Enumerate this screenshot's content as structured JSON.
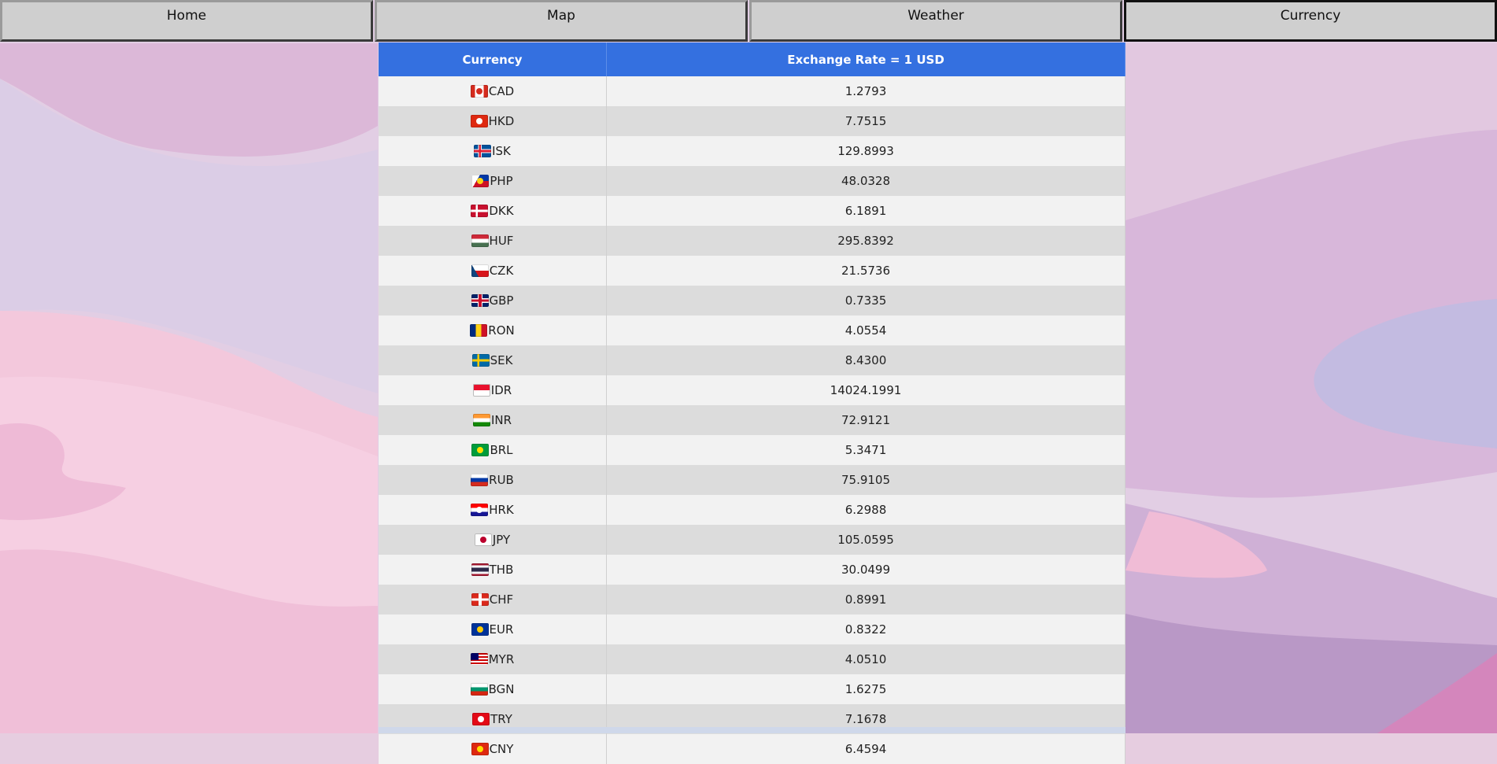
{
  "nav": {
    "items": [
      {
        "label": "Home",
        "name": "nav-home-button"
      },
      {
        "label": "Map",
        "name": "nav-map-button"
      },
      {
        "label": "Weather",
        "name": "nav-weather-button"
      },
      {
        "label": "Currency",
        "name": "nav-currency-button"
      }
    ]
  },
  "table": {
    "headers": [
      "Currency",
      "Exchange Rate = 1 USD"
    ],
    "rows": [
      {
        "code": "CAD",
        "rate": "1.2793",
        "flag": "linear-gradient(90deg,#d52b1e 0 25%,#ffffff 25% 75%,#d52b1e 75%)",
        "dot": "#d52b1e"
      },
      {
        "code": "HKD",
        "rate": "7.7515",
        "flag": "#de2910",
        "dot": "#ffffff"
      },
      {
        "code": "ISK",
        "rate": "129.8993",
        "flag": "linear-gradient(90deg,transparent 30%,#dc1e35 30% 40%,transparent 40%),linear-gradient(180deg,transparent 42%,#dc1e35 42% 58%,transparent 58%),linear-gradient(90deg,transparent 25%,#ffffff 25% 45%,transparent 45%),linear-gradient(180deg,transparent 35%,#ffffff 35% 65%,transparent 65%),#02529c",
        "dot": ""
      },
      {
        "code": "PHP",
        "rate": "48.0328",
        "flag": "linear-gradient(120deg,#ffffff 0 35%,transparent 35%),linear-gradient(180deg,#0038a8 50%,#ce1126 50%)",
        "dot": "#fcd116"
      },
      {
        "code": "DKK",
        "rate": "6.1891",
        "flag": "linear-gradient(90deg,transparent 30%,#ffffff 30% 42%,transparent 42%),linear-gradient(180deg,transparent 42%,#ffffff 42% 58%,transparent 58%),#c8102e",
        "dot": ""
      },
      {
        "code": "HUF",
        "rate": "295.8392",
        "flag": "linear-gradient(180deg,#ce2939 0 33%,#ffffff 33% 66%,#477050 66%)",
        "dot": ""
      },
      {
        "code": "CZK",
        "rate": "21.5736",
        "flag": "linear-gradient(60deg,#11457e 0 30%,transparent 30%),linear-gradient(180deg,#ffffff 50%,#d7141a 50%)",
        "dot": ""
      },
      {
        "code": "GBP",
        "rate": "0.7335",
        "flag": "linear-gradient(90deg,transparent 42%,#c8102e 42% 58%,transparent 58%),linear-gradient(180deg,transparent 40%,#c8102e 40% 60%,transparent 60%),linear-gradient(90deg,transparent 36%,#ffffff 36% 64%,transparent 64%),linear-gradient(180deg,transparent 32%,#ffffff 32% 68%,transparent 68%),#012169",
        "dot": ""
      },
      {
        "code": "RON",
        "rate": "4.0554",
        "flag": "linear-gradient(90deg,#002b7f 0 33%,#fcd116 33% 66%,#ce1126 66%)",
        "dot": ""
      },
      {
        "code": "SEK",
        "rate": "8.4300",
        "flag": "linear-gradient(90deg,transparent 30%,#fecc00 30% 42%,transparent 42%),linear-gradient(180deg,transparent 42%,#fecc00 42% 58%,transparent 58%),#006aa7",
        "dot": ""
      },
      {
        "code": "IDR",
        "rate": "14024.1991",
        "flag": "linear-gradient(180deg,#e8112d 50%,#ffffff 50%)",
        "dot": ""
      },
      {
        "code": "INR",
        "rate": "72.9121",
        "flag": "linear-gradient(180deg,#ff9933 0 33%,#ffffff 33% 66%,#138808 66%)",
        "dot": ""
      },
      {
        "code": "BRL",
        "rate": "5.3471",
        "flag": "#009c3b",
        "dot": "#ffdf00"
      },
      {
        "code": "RUB",
        "rate": "75.9105",
        "flag": "linear-gradient(180deg,#ffffff 0 33%,#0039a6 33% 66%,#d52b1e 66%)",
        "dot": ""
      },
      {
        "code": "HRK",
        "rate": "6.2988",
        "flag": "linear-gradient(180deg,#ff0000 0 33%,#ffffff 33% 66%,#171796 66%)",
        "dot": "#ffffff"
      },
      {
        "code": "JPY",
        "rate": "105.0595",
        "flag": "#ffffff",
        "dot": "#bc002d"
      },
      {
        "code": "THB",
        "rate": "30.0499",
        "flag": "linear-gradient(180deg,#a51931 0 16%,#f4f5f8 16% 33%,#2d2a4a 33% 66%,#f4f5f8 66% 83%,#a51931 83%)",
        "dot": ""
      },
      {
        "code": "CHF",
        "rate": "0.8991",
        "flag": "linear-gradient(90deg,transparent 42%,#ffffff 42% 58%,transparent 58%),linear-gradient(180deg,transparent 40%,#ffffff 40% 60%,transparent 60%),#da291c",
        "dot": ""
      },
      {
        "code": "EUR",
        "rate": "0.8322",
        "flag": "#003399",
        "dot": "#ffcc00"
      },
      {
        "code": "MYR",
        "rate": "4.0510",
        "flag": "linear-gradient(90deg,#010066 0 45%,transparent 45%) 0 0/100% 55% no-repeat,repeating-linear-gradient(180deg,#cc0001 0 2px,#ffffff 2px 4px)",
        "dot": ""
      },
      {
        "code": "BGN",
        "rate": "1.6275",
        "flag": "linear-gradient(180deg,#ffffff 0 33%,#00966e 33% 66%,#d62612 66%)",
        "dot": ""
      },
      {
        "code": "TRY",
        "rate": "7.1678",
        "flag": "#e30a17",
        "dot": "#ffffff"
      },
      {
        "code": "CNY",
        "rate": "6.4594",
        "flag": "#de2910",
        "dot": "#ffde00"
      }
    ]
  }
}
